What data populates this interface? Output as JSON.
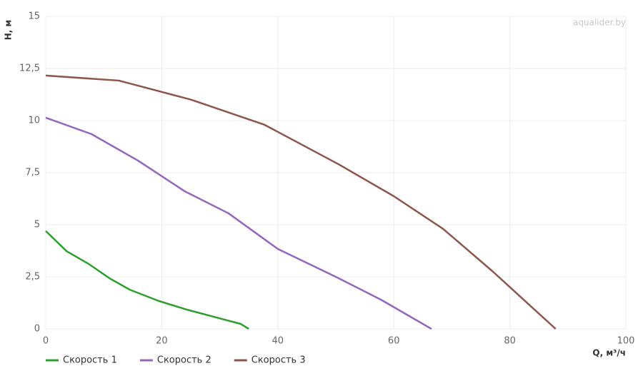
{
  "chart_data": {
    "type": "line",
    "x_label": "Q, м³/ч",
    "y_label": "H, м",
    "watermark": "aqualider.by",
    "xlim": [
      0,
      100
    ],
    "xticks": [
      0,
      20,
      40,
      60,
      80,
      100
    ],
    "ylim": [
      0,
      15
    ],
    "yticks": [
      0,
      {
        "value": 2.5,
        "label": "2,5"
      },
      5,
      {
        "value": 7.5,
        "label": "7,5"
      },
      10,
      {
        "value": 12.5,
        "label": "12,5"
      },
      15
    ],
    "grid": true,
    "legend": "bottom-left",
    "series": [
      {
        "name": "Скорость 1",
        "color": "#2ca02c",
        "x": [
          0,
          3.6,
          7.4,
          11,
          14.5,
          19.5,
          24.4,
          29.4,
          33.6,
          35
        ],
        "values": [
          4.7,
          3.73,
          3.12,
          2.43,
          1.88,
          1.34,
          0.92,
          0.55,
          0.24,
          0
        ]
      },
      {
        "name": "Скорость 2",
        "color": "#9467bd",
        "x": [
          0,
          7.9,
          15.9,
          24,
          31.5,
          40,
          50,
          57.8,
          66.5
        ],
        "values": [
          10.14,
          9.35,
          8.08,
          6.6,
          5.55,
          3.84,
          2.5,
          1.4,
          0
        ]
      },
      {
        "name": "Скорость 3",
        "color": "#8c564b",
        "x": [
          0,
          12.6,
          25.1,
          37.7,
          50.5,
          60,
          68.5,
          77,
          87.9
        ],
        "values": [
          12.16,
          11.92,
          11.0,
          9.8,
          7.9,
          6.37,
          4.8,
          2.77,
          0
        ]
      }
    ]
  }
}
